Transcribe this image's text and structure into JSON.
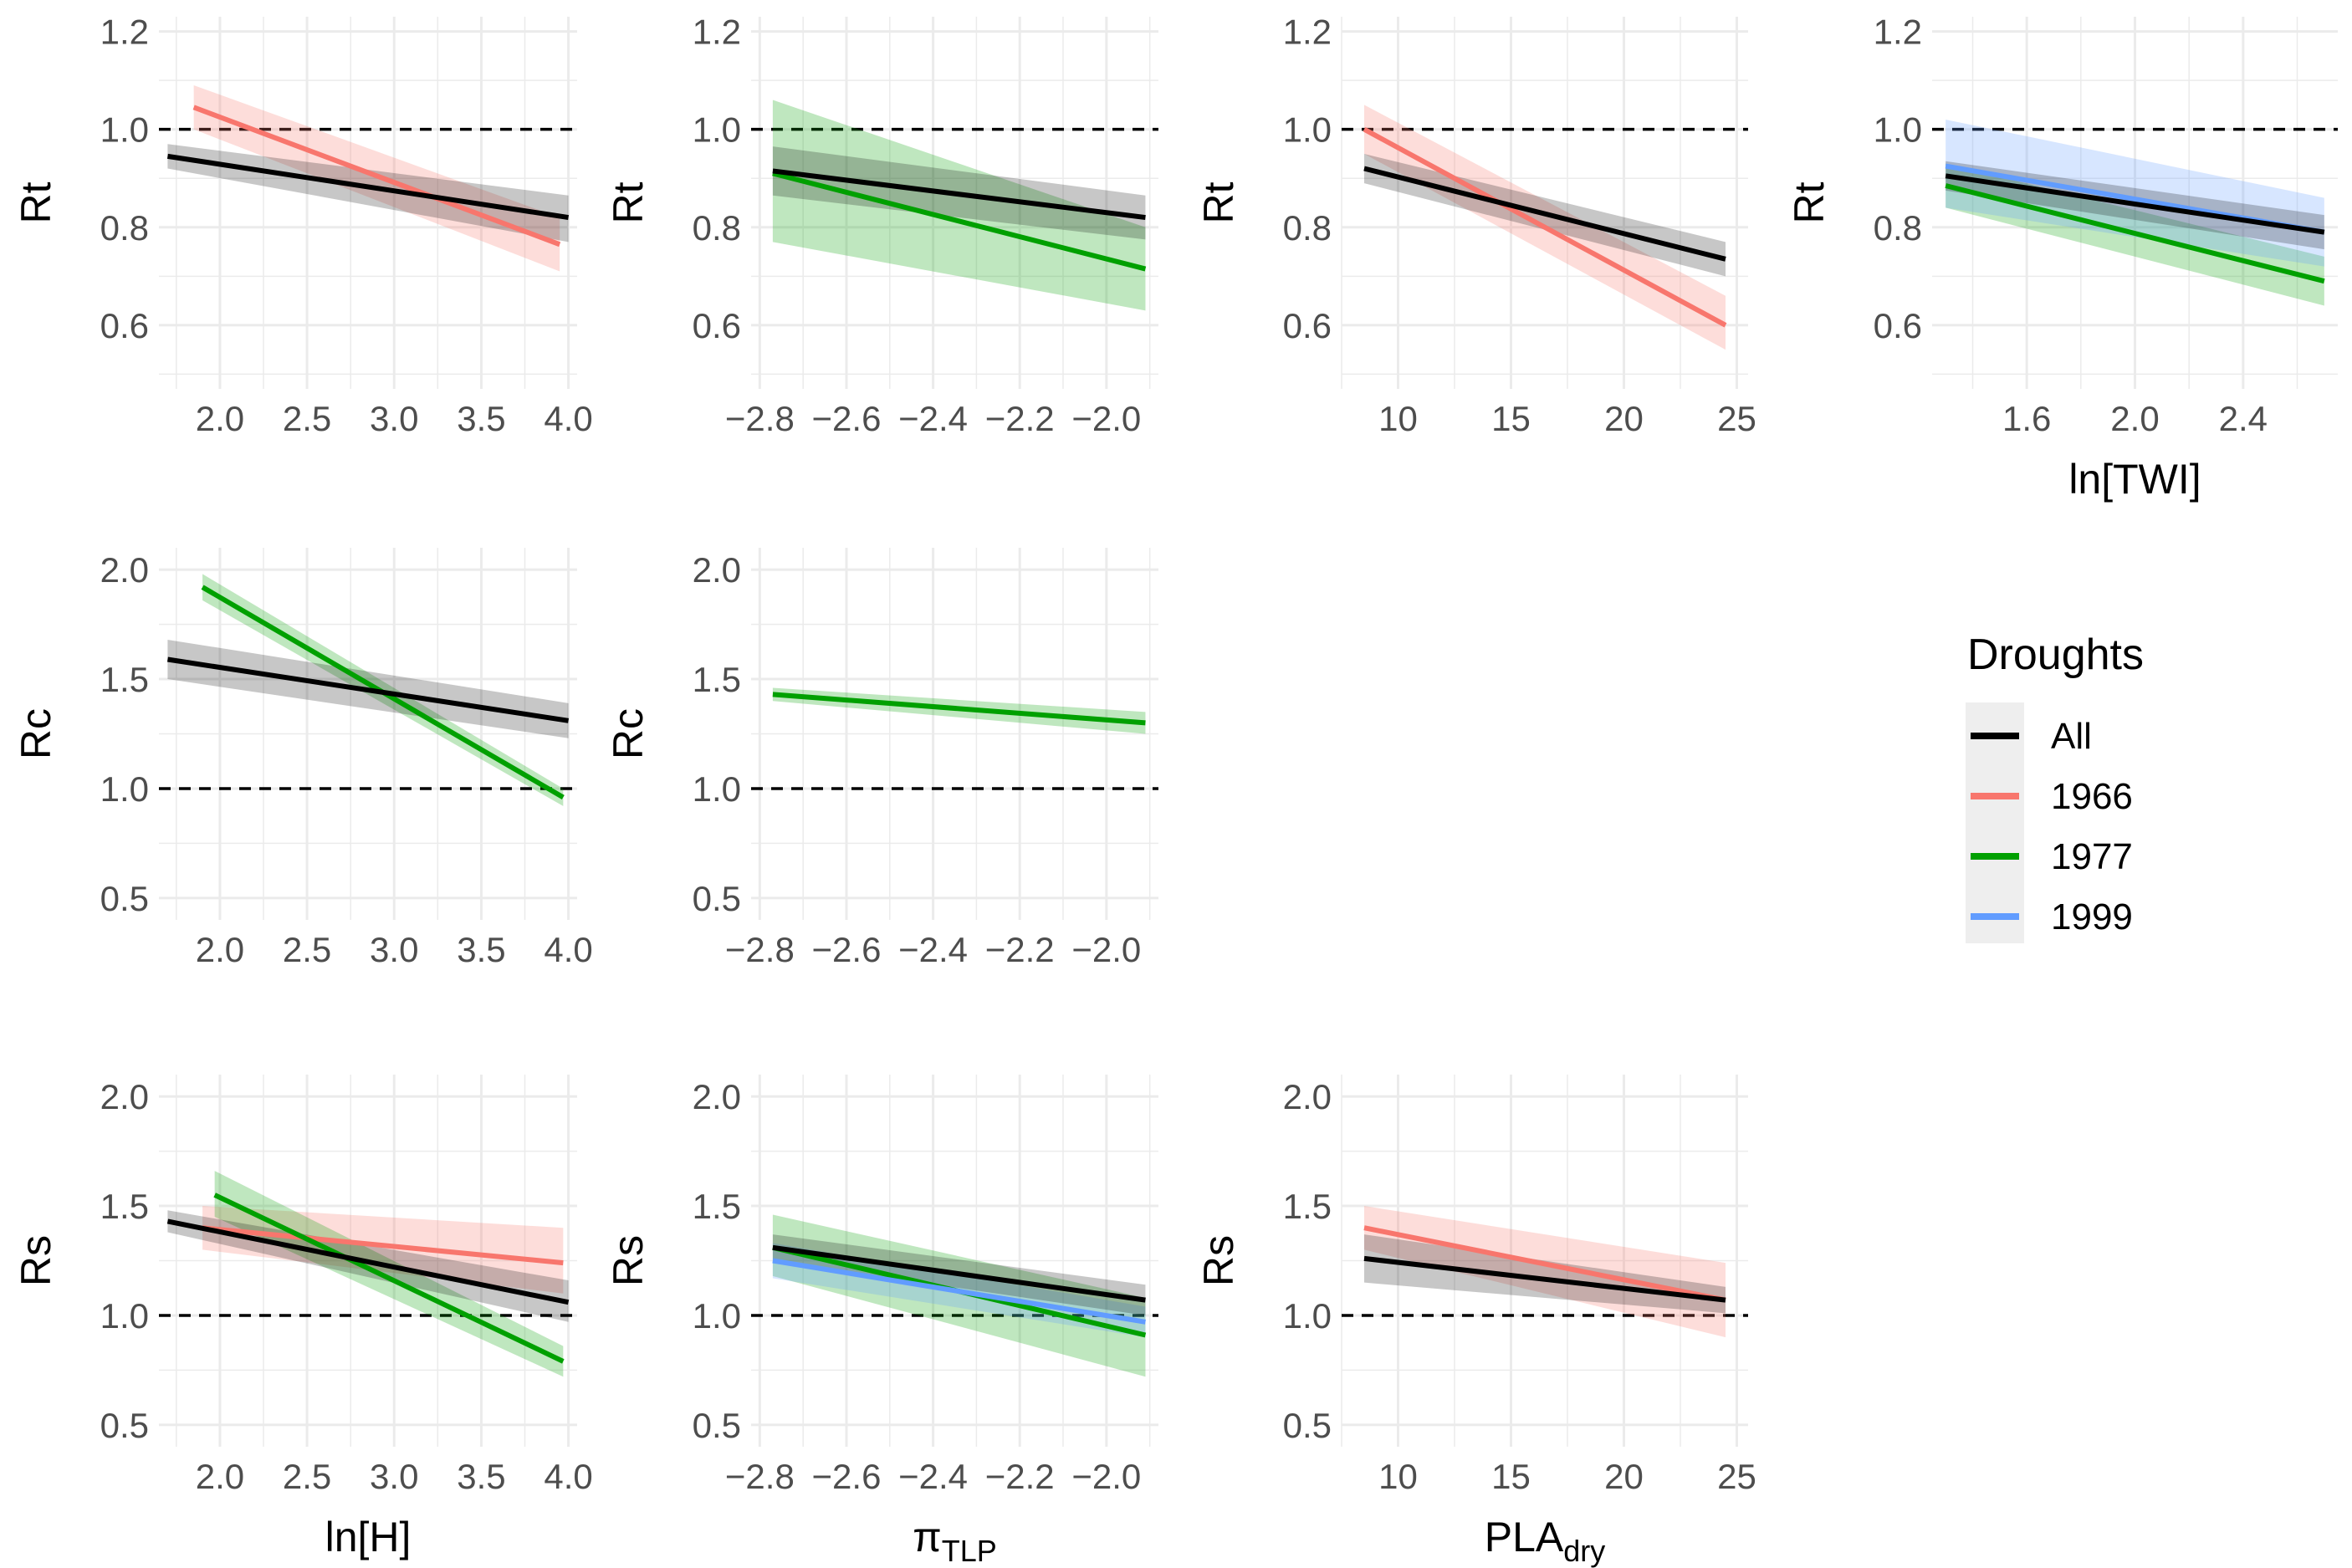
{
  "colors": {
    "All": "#000000",
    "1966": "#f8766d",
    "1977": "#00a000",
    "1999": "#619cff",
    "grid": "#ebebeb",
    "ref_line": "#000000"
  },
  "legend": {
    "title": "Droughts",
    "entries": [
      "All",
      "1966",
      "1977",
      "1999"
    ],
    "placement": "right"
  },
  "chart_data": [
    {
      "type": "line",
      "panel": "Rt-H",
      "xlabel": "",
      "ylabel": "Rt",
      "xlim": [
        1.65,
        4.05
      ],
      "ylim": [
        0.47,
        1.23
      ],
      "xticks": [
        "2.0",
        "2.5",
        "3.0",
        "3.5",
        "4.0"
      ],
      "yticks": [
        "0.6",
        "0.8",
        "1.0",
        "1.2"
      ],
      "reference_line": 1.0,
      "grid": true,
      "series": [
        {
          "name": "All",
          "x": [
            1.7,
            4.0
          ],
          "y": [
            0.945,
            0.82
          ],
          "ci_low": [
            0.92,
            0.77
          ],
          "ci_high": [
            0.97,
            0.865
          ]
        },
        {
          "name": "1966",
          "x": [
            1.85,
            3.95
          ],
          "y": [
            1.045,
            0.765
          ],
          "ci_low": [
            1.0,
            0.71
          ],
          "ci_high": [
            1.09,
            0.82
          ]
        }
      ]
    },
    {
      "type": "line",
      "panel": "Rt-piTLP",
      "xlabel": "",
      "ylabel": "Rt",
      "xlim": [
        -2.82,
        -1.88
      ],
      "ylim": [
        0.47,
        1.23
      ],
      "xticks": [
        "−2.8",
        "−2.6",
        "−2.4",
        "−2.2",
        "−2.0"
      ],
      "yticks": [
        "0.6",
        "0.8",
        "1.0",
        "1.2"
      ],
      "reference_line": 1.0,
      "grid": true,
      "series": [
        {
          "name": "All",
          "x": [
            -2.77,
            -1.91
          ],
          "y": [
            0.915,
            0.82
          ],
          "ci_low": [
            0.865,
            0.775
          ],
          "ci_high": [
            0.965,
            0.865
          ]
        },
        {
          "name": "1977",
          "x": [
            -2.77,
            -1.91
          ],
          "y": [
            0.91,
            0.715
          ],
          "ci_low": [
            0.77,
            0.63
          ],
          "ci_high": [
            1.06,
            0.8
          ]
        }
      ]
    },
    {
      "type": "line",
      "panel": "Rt-PLA",
      "xlabel": "",
      "ylabel": "Rt",
      "xlim": [
        7.5,
        25.5
      ],
      "ylim": [
        0.47,
        1.23
      ],
      "xticks": [
        "10",
        "15",
        "20",
        "25"
      ],
      "yticks": [
        "0.6",
        "0.8",
        "1.0",
        "1.2"
      ],
      "reference_line": 1.0,
      "grid": true,
      "series": [
        {
          "name": "All",
          "x": [
            8.5,
            24.5
          ],
          "y": [
            0.92,
            0.735
          ],
          "ci_low": [
            0.89,
            0.7
          ],
          "ci_high": [
            0.95,
            0.77
          ]
        },
        {
          "name": "1966",
          "x": [
            8.5,
            24.5
          ],
          "y": [
            1.0,
            0.6
          ],
          "ci_low": [
            0.95,
            0.55
          ],
          "ci_high": [
            1.05,
            0.66
          ]
        }
      ]
    },
    {
      "type": "line",
      "panel": "Rt-TWI",
      "xlabel": "ln[TWI]",
      "ylabel": "Rt",
      "xlim": [
        1.25,
        2.75
      ],
      "ylim": [
        0.47,
        1.23
      ],
      "xticks": [
        "1.6",
        "2.0",
        "2.4"
      ],
      "yticks": [
        "0.6",
        "0.8",
        "1.0",
        "1.2"
      ],
      "reference_line": 1.0,
      "grid": true,
      "series": [
        {
          "name": "All",
          "x": [
            1.3,
            2.7
          ],
          "y": [
            0.905,
            0.79
          ],
          "ci_low": [
            0.875,
            0.755
          ],
          "ci_high": [
            0.935,
            0.825
          ]
        },
        {
          "name": "1977",
          "x": [
            1.3,
            2.7
          ],
          "y": [
            0.885,
            0.69
          ],
          "ci_low": [
            0.84,
            0.64
          ],
          "ci_high": [
            0.93,
            0.74
          ]
        },
        {
          "name": "1999",
          "x": [
            1.3,
            2.7
          ],
          "y": [
            0.925,
            0.79
          ],
          "ci_low": [
            0.84,
            0.72
          ],
          "ci_high": [
            1.02,
            0.86
          ]
        }
      ]
    },
    {
      "type": "line",
      "panel": "Rc-H",
      "xlabel": "",
      "ylabel": "Rc",
      "xlim": [
        1.65,
        4.05
      ],
      "ylim": [
        0.4,
        2.1
      ],
      "xticks": [
        "2.0",
        "2.5",
        "3.0",
        "3.5",
        "4.0"
      ],
      "yticks": [
        "0.5",
        "1.0",
        "1.5",
        "2.0"
      ],
      "reference_line": 1.0,
      "grid": true,
      "series": [
        {
          "name": "All",
          "x": [
            1.7,
            4.0
          ],
          "y": [
            1.59,
            1.31
          ],
          "ci_low": [
            1.5,
            1.23
          ],
          "ci_high": [
            1.68,
            1.39
          ]
        },
        {
          "name": "1977",
          "x": [
            1.9,
            3.97
          ],
          "y": [
            1.92,
            0.96
          ],
          "ci_low": [
            1.86,
            0.92
          ],
          "ci_high": [
            1.98,
            1.0
          ]
        }
      ]
    },
    {
      "type": "line",
      "panel": "Rc-piTLP",
      "xlabel": "",
      "ylabel": "Rc",
      "xlim": [
        -2.82,
        -1.88
      ],
      "ylim": [
        0.4,
        2.1
      ],
      "xticks": [
        "−2.8",
        "−2.6",
        "−2.4",
        "−2.2",
        "−2.0"
      ],
      "yticks": [
        "0.5",
        "1.0",
        "1.5",
        "2.0"
      ],
      "reference_line": 1.0,
      "grid": true,
      "series": [
        {
          "name": "1977",
          "x": [
            -2.77,
            -1.91
          ],
          "y": [
            1.43,
            1.3
          ],
          "ci_low": [
            1.4,
            1.25
          ],
          "ci_high": [
            1.46,
            1.35
          ]
        }
      ]
    },
    {
      "type": "line",
      "panel": "Rs-H",
      "xlabel": "ln[H]",
      "ylabel": "Rs",
      "xlim": [
        1.65,
        4.05
      ],
      "ylim": [
        0.4,
        2.1
      ],
      "xticks": [
        "2.0",
        "2.5",
        "3.0",
        "3.5",
        "4.0"
      ],
      "yticks": [
        "0.5",
        "1.0",
        "1.5",
        "2.0"
      ],
      "reference_line": 1.0,
      "grid": true,
      "series": [
        {
          "name": "All",
          "x": [
            1.7,
            4.0
          ],
          "y": [
            1.43,
            1.06
          ],
          "ci_low": [
            1.38,
            0.97
          ],
          "ci_high": [
            1.48,
            1.16
          ]
        },
        {
          "name": "1966",
          "x": [
            1.9,
            3.97
          ],
          "y": [
            1.4,
            1.24
          ],
          "ci_low": [
            1.3,
            1.1
          ],
          "ci_high": [
            1.5,
            1.4
          ]
        },
        {
          "name": "1977",
          "x": [
            1.97,
            3.97
          ],
          "y": [
            1.55,
            0.79
          ],
          "ci_low": [
            1.45,
            0.72
          ],
          "ci_high": [
            1.66,
            0.86
          ]
        }
      ]
    },
    {
      "type": "line",
      "panel": "Rs-piTLP",
      "xlabel": "πTLP",
      "ylabel": "Rs",
      "xlim": [
        -2.82,
        -1.88
      ],
      "ylim": [
        0.4,
        2.1
      ],
      "xticks": [
        "−2.8",
        "−2.6",
        "−2.4",
        "−2.2",
        "−2.0"
      ],
      "yticks": [
        "0.5",
        "1.0",
        "1.5",
        "2.0"
      ],
      "reference_line": 1.0,
      "grid": true,
      "series": [
        {
          "name": "All",
          "x": [
            -2.77,
            -1.91
          ],
          "y": [
            1.31,
            1.07
          ],
          "ci_low": [
            1.25,
            1.0
          ],
          "ci_high": [
            1.37,
            1.14
          ]
        },
        {
          "name": "1977",
          "x": [
            -2.77,
            -1.91
          ],
          "y": [
            1.31,
            0.91
          ],
          "ci_low": [
            1.18,
            0.72
          ],
          "ci_high": [
            1.46,
            1.08
          ]
        },
        {
          "name": "1999",
          "x": [
            -2.77,
            -1.91
          ],
          "y": [
            1.25,
            0.97
          ],
          "ci_low": [
            1.17,
            0.9
          ],
          "ci_high": [
            1.33,
            1.04
          ]
        }
      ]
    },
    {
      "type": "line",
      "panel": "Rs-PLA",
      "xlabel": "PLAdry",
      "ylabel": "Rs",
      "xlim": [
        7.5,
        25.5
      ],
      "ylim": [
        0.4,
        2.1
      ],
      "xticks": [
        "10",
        "15",
        "20",
        "25"
      ],
      "yticks": [
        "0.5",
        "1.0",
        "1.5",
        "2.0"
      ],
      "reference_line": 1.0,
      "grid": true,
      "series": [
        {
          "name": "All",
          "x": [
            8.5,
            24.5
          ],
          "y": [
            1.26,
            1.07
          ],
          "ci_low": [
            1.15,
            1.01
          ],
          "ci_high": [
            1.37,
            1.13
          ]
        },
        {
          "name": "1966",
          "x": [
            8.5,
            24.5
          ],
          "y": [
            1.4,
            1.07
          ],
          "ci_low": [
            1.3,
            0.9
          ],
          "ci_high": [
            1.5,
            1.24
          ]
        }
      ]
    }
  ]
}
